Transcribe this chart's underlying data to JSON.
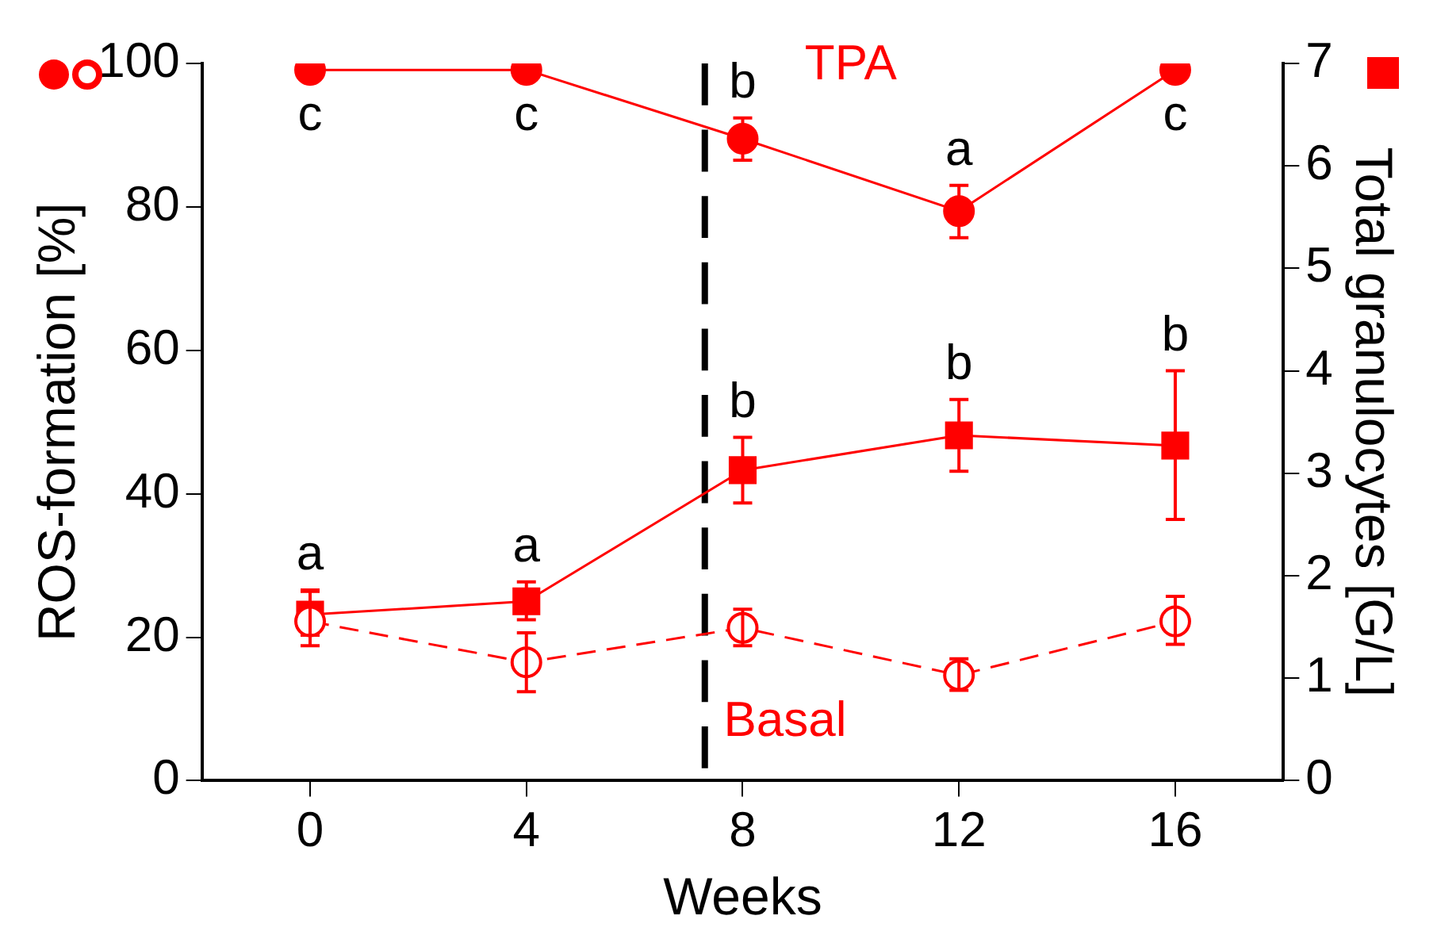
{
  "chart_data": {
    "type": "line",
    "xlabel": "Weeks",
    "ylabel": "ROS-formation [%]",
    "y2label": "Total granulocytes [G/L]",
    "x": [
      0,
      4,
      8,
      12,
      16
    ],
    "xlim": [
      -2,
      18
    ],
    "xticks": [
      0,
      4,
      8,
      12,
      16
    ],
    "ylim": [
      0,
      100
    ],
    "yticks": [
      0,
      20,
      40,
      60,
      80,
      100
    ],
    "y2lim": [
      0,
      7
    ],
    "y2ticks": [
      0,
      1,
      2,
      3,
      4,
      5,
      6,
      7
    ],
    "grid": false,
    "legend": false,
    "series": [
      {
        "name": "TPA",
        "color": "#ff0000",
        "marker": "circle",
        "line_style": "solid",
        "values": [
          99.1,
          99.1,
          89.5,
          79.4,
          99.1
        ],
        "errors": [
          null,
          null,
          [
            86.5,
            92.4
          ],
          [
            75.7,
            83
          ],
          null
        ],
        "value_labels": [
          "c",
          "c",
          "b",
          "a",
          "c"
        ]
      },
      {
        "name": "Basal",
        "color": "#ff0000",
        "marker": "circle",
        "line_style": "dashed",
        "values": [
          22.2,
          16.5,
          21.3,
          14.7,
          22.2
        ],
        "errors": [
          [
            18.8,
            26.4
          ],
          [
            12.4,
            20.6
          ],
          [
            18.8,
            23.9
          ],
          [
            12.6,
            17
          ],
          [
            19,
            25.7
          ]
        ]
      },
      {
        "color": "#ff0000",
        "marker": "square",
        "line_style": "solid",
        "axis": "y2",
        "values": [
          1.62,
          1.75,
          3.03,
          3.37,
          3.27
        ],
        "errors": [
          [
            1.42,
            1.86
          ],
          [
            1.57,
            1.94
          ],
          [
            2.71,
            3.35
          ],
          [
            3.02,
            3.72
          ],
          [
            2.55,
            4.0
          ]
        ],
        "value_labels": [
          "a",
          "a",
          "b",
          "b",
          "b"
        ]
      }
    ],
    "ref_lines": [
      {
        "axis": "x",
        "value": 7.3,
        "color": "#000000",
        "line_style": "dashed"
      }
    ]
  }
}
